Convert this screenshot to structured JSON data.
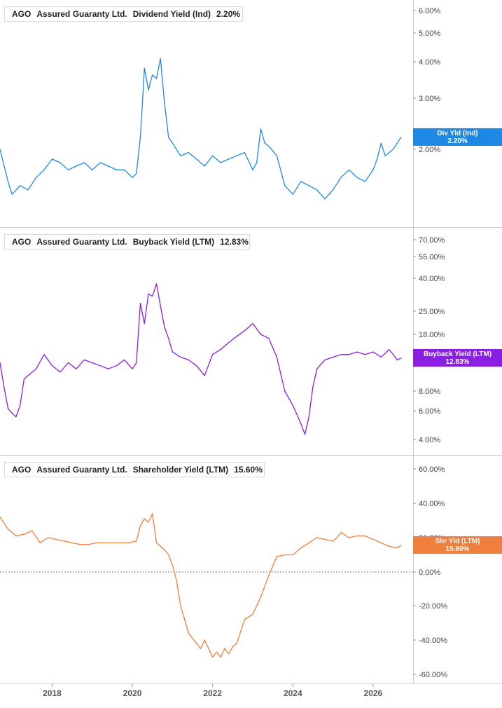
{
  "colors": {
    "dividend": "#1e88e5",
    "buyback": "#8a1ee3",
    "shareholder": "#f07e3c",
    "grid_text": "#444444",
    "divider": "#cccccc"
  },
  "panels": [
    {
      "ticker": "AGO",
      "company": "Assured Guaranty Ltd.",
      "metric": "Dividend Yield (Ind)",
      "value": "2.20%",
      "flag_label": "Div Yld (Ind)",
      "flag_value": "2.20%",
      "y_ticks": [
        "6.00%",
        "5.00%",
        "4.00%",
        "3.00%",
        "2.00%"
      ]
    },
    {
      "ticker": "AGO",
      "company": "Assured Guaranty Ltd.",
      "metric": "Buyback Yield (LTM)",
      "value": "12.83%",
      "flag_label": "Buyback Yield (LTM)",
      "flag_value": "12.83%",
      "y_ticks": [
        "70.00%",
        "55.00%",
        "40.00%",
        "25.00%",
        "18.00%",
        "8.00%",
        "6.00%",
        "4.00%"
      ]
    },
    {
      "ticker": "AGO",
      "company": "Assured Guaranty Ltd.",
      "metric": "Shareholder Yield (LTM)",
      "value": "15.60%",
      "flag_label": "Shr Yld (LTM)",
      "flag_value": "15.60%",
      "y_ticks": [
        "60.00%",
        "40.00%",
        "20.00%",
        "0.00%",
        "-20.00%",
        "-40.00%",
        "-60.00%"
      ]
    }
  ],
  "x_ticks": [
    "2018",
    "2020",
    "2022",
    "2024",
    "2026"
  ],
  "chart_data": [
    {
      "type": "line",
      "y_scale": "log",
      "ylim": [
        1.3,
        6.6
      ],
      "x_range": [
        2016.7,
        2026.7
      ],
      "series": [
        {
          "x": [
            2016.7,
            2016.9,
            2017.0,
            2017.2,
            2017.4,
            2017.6,
            2017.8,
            2018.0,
            2018.2,
            2018.4,
            2018.6,
            2018.8,
            2019.0,
            2019.2,
            2019.4,
            2019.6,
            2019.8,
            2020.0,
            2020.1,
            2020.2,
            2020.3,
            2020.4,
            2020.5,
            2020.6,
            2020.7,
            2020.8,
            2020.9,
            2021.0,
            2021.2,
            2021.4,
            2021.6,
            2021.8,
            2022.0,
            2022.2,
            2022.4,
            2022.6,
            2022.8,
            2023.0,
            2023.1,
            2023.2,
            2023.3,
            2023.4,
            2023.6,
            2023.8,
            2024.0,
            2024.2,
            2024.4,
            2024.6,
            2024.8,
            2025.0,
            2025.2,
            2025.4,
            2025.6,
            2025.8,
            2026.0,
            2026.1,
            2026.2,
            2026.3,
            2026.4,
            2026.5,
            2026.6,
            2026.7
          ],
          "y": [
            2.0,
            1.55,
            1.4,
            1.5,
            1.45,
            1.6,
            1.7,
            1.85,
            1.8,
            1.7,
            1.75,
            1.8,
            1.7,
            1.8,
            1.75,
            1.7,
            1.7,
            1.6,
            1.65,
            2.2,
            3.8,
            3.2,
            3.6,
            3.5,
            4.1,
            2.9,
            2.2,
            2.1,
            1.9,
            1.95,
            1.85,
            1.75,
            1.9,
            1.8,
            1.85,
            1.9,
            1.95,
            1.7,
            1.8,
            2.35,
            2.1,
            2.05,
            1.9,
            1.5,
            1.4,
            1.55,
            1.5,
            1.45,
            1.35,
            1.45,
            1.6,
            1.7,
            1.6,
            1.55,
            1.7,
            1.85,
            2.1,
            1.9,
            1.95,
            2.0,
            2.1,
            2.2
          ]
        }
      ]
    },
    {
      "type": "line",
      "y_scale": "log",
      "ylim": [
        3.6,
        78
      ],
      "x_range": [
        2016.7,
        2026.7
      ],
      "series": [
        {
          "x": [
            2016.7,
            2016.8,
            2016.9,
            2017.0,
            2017.1,
            2017.2,
            2017.3,
            2017.4,
            2017.6,
            2017.8,
            2018.0,
            2018.2,
            2018.4,
            2018.6,
            2018.8,
            2019.0,
            2019.2,
            2019.4,
            2019.6,
            2019.8,
            2020.0,
            2020.1,
            2020.2,
            2020.3,
            2020.4,
            2020.5,
            2020.6,
            2020.7,
            2020.8,
            2020.9,
            2021.0,
            2021.2,
            2021.4,
            2021.6,
            2021.8,
            2022.0,
            2022.2,
            2022.4,
            2022.6,
            2022.8,
            2023.0,
            2023.2,
            2023.4,
            2023.6,
            2023.8,
            2024.0,
            2024.2,
            2024.3,
            2024.4,
            2024.5,
            2024.6,
            2024.8,
            2025.0,
            2025.2,
            2025.4,
            2025.6,
            2025.8,
            2026.0,
            2026.2,
            2026.4,
            2026.5,
            2026.6,
            2026.7
          ],
          "y": [
            12.0,
            8.5,
            6.2,
            5.8,
            5.5,
            6.5,
            9.5,
            10.0,
            11.0,
            13.5,
            11.5,
            10.5,
            12.0,
            11.0,
            12.5,
            12.0,
            11.5,
            11.0,
            11.5,
            12.5,
            11.0,
            12.0,
            28.0,
            21.0,
            32.0,
            31.0,
            37.0,
            27.0,
            20.0,
            17.0,
            14.0,
            13.0,
            12.5,
            11.5,
            10.0,
            13.5,
            14.5,
            16.0,
            17.5,
            19.0,
            21.0,
            18.0,
            17.0,
            13.0,
            8.0,
            6.5,
            5.0,
            4.3,
            5.5,
            8.5,
            11.0,
            12.5,
            13.0,
            13.5,
            13.5,
            14.0,
            13.5,
            14.0,
            13.0,
            14.5,
            13.5,
            12.5,
            12.83
          ]
        }
      ]
    },
    {
      "type": "line",
      "ylim": [
        -62,
        64
      ],
      "x_range": [
        2016.7,
        2026.7
      ],
      "reference_line": 0,
      "series": [
        {
          "x": [
            2016.7,
            2016.9,
            2017.1,
            2017.3,
            2017.5,
            2017.7,
            2017.9,
            2018.1,
            2018.3,
            2018.5,
            2018.7,
            2018.9,
            2019.1,
            2019.3,
            2019.5,
            2019.7,
            2019.9,
            2020.1,
            2020.2,
            2020.3,
            2020.4,
            2020.5,
            2020.6,
            2020.7,
            2020.8,
            2020.9,
            2021.0,
            2021.1,
            2021.2,
            2021.3,
            2021.4,
            2021.5,
            2021.6,
            2021.7,
            2021.8,
            2021.9,
            2022.0,
            2022.1,
            2022.2,
            2022.3,
            2022.4,
            2022.5,
            2022.6,
            2022.8,
            2023.0,
            2023.2,
            2023.4,
            2023.6,
            2023.8,
            2024.0,
            2024.2,
            2024.4,
            2024.6,
            2024.8,
            2025.0,
            2025.1,
            2025.2,
            2025.4,
            2025.6,
            2025.8,
            2026.0,
            2026.2,
            2026.4,
            2026.6,
            2026.7
          ],
          "y": [
            32,
            25,
            21,
            22,
            24,
            17,
            20,
            19,
            18,
            17,
            16,
            16,
            17,
            17,
            17,
            17,
            17,
            18,
            27,
            31,
            29,
            34,
            17,
            15,
            13,
            10,
            4,
            -5,
            -20,
            -28,
            -36,
            -39,
            -42,
            -45,
            -40,
            -45,
            -50,
            -47,
            -50,
            -45,
            -48,
            -44,
            -42,
            -28,
            -25,
            -15,
            -2,
            9,
            10,
            10,
            14,
            17,
            20,
            19,
            18,
            20,
            23,
            20,
            21,
            21,
            19,
            17,
            15,
            14,
            15.6
          ]
        }
      ]
    }
  ]
}
